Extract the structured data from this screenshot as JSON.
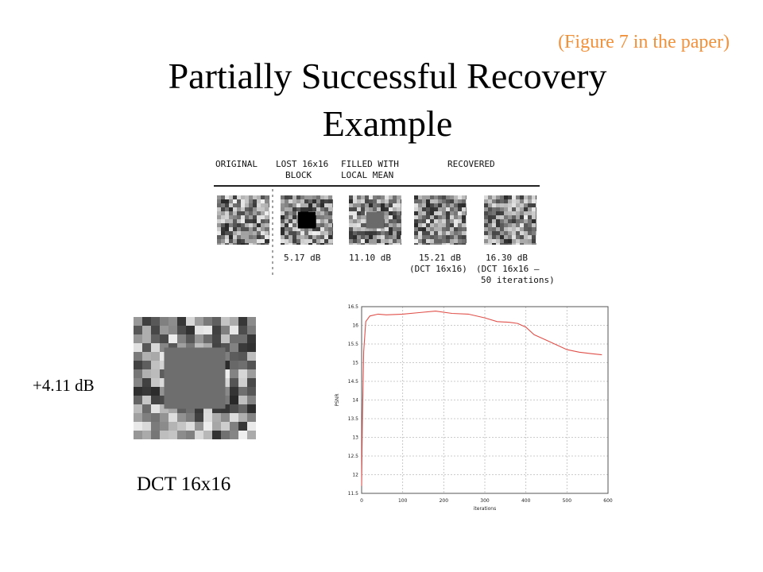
{
  "figure_reference": "(Figure 7 in the paper)",
  "title_line1": "Partially Successful Recovery",
  "title_line2": "Example",
  "figure": {
    "headers": {
      "original": "ORIGINAL",
      "lost": "LOST 16x16",
      "lost2": "BLOCK",
      "filled": "FILLED WITH",
      "filled2": "LOCAL MEAN",
      "recovered": "RECOVERED"
    },
    "captions": {
      "lost": "5.17 dB",
      "filled": "11.10 dB",
      "rec1": "15.21 dB",
      "rec1b": "(DCT 16x16)",
      "rec2": "16.30 dB",
      "rec2b": "(DCT 16x16 –",
      "rec2c": "50 iterations)"
    }
  },
  "gain_label": "+4.11 dB",
  "method_label": "DCT 16x16",
  "colors": {
    "curve": "#e0504a",
    "accent": "#f0913c"
  },
  "chart_data": {
    "type": "line",
    "xlabel": "iterations",
    "ylabel": "PSNR",
    "xlim": [
      0,
      600
    ],
    "ylim": [
      11.5,
      16.5
    ],
    "xticks": [
      "0",
      "100",
      "200",
      "300",
      "400",
      "500",
      "600"
    ],
    "yticks": [
      "11.5",
      "12",
      "12.5",
      "13",
      "13.5",
      "14",
      "14.5",
      "15",
      "15.5",
      "16",
      "16.5"
    ],
    "grid": true,
    "series": [
      {
        "x": [
          0,
          2,
          5,
          10,
          20,
          40,
          60,
          100,
          140,
          180,
          220,
          260,
          300,
          330,
          360,
          380,
          400,
          420,
          450,
          480,
          500,
          530,
          560,
          585
        ],
        "values": [
          11.7,
          13.5,
          15.3,
          16.1,
          16.25,
          16.3,
          16.28,
          16.3,
          16.34,
          16.38,
          16.32,
          16.3,
          16.2,
          16.1,
          16.08,
          16.05,
          15.95,
          15.75,
          15.6,
          15.45,
          15.35,
          15.28,
          15.24,
          15.21
        ]
      }
    ]
  }
}
